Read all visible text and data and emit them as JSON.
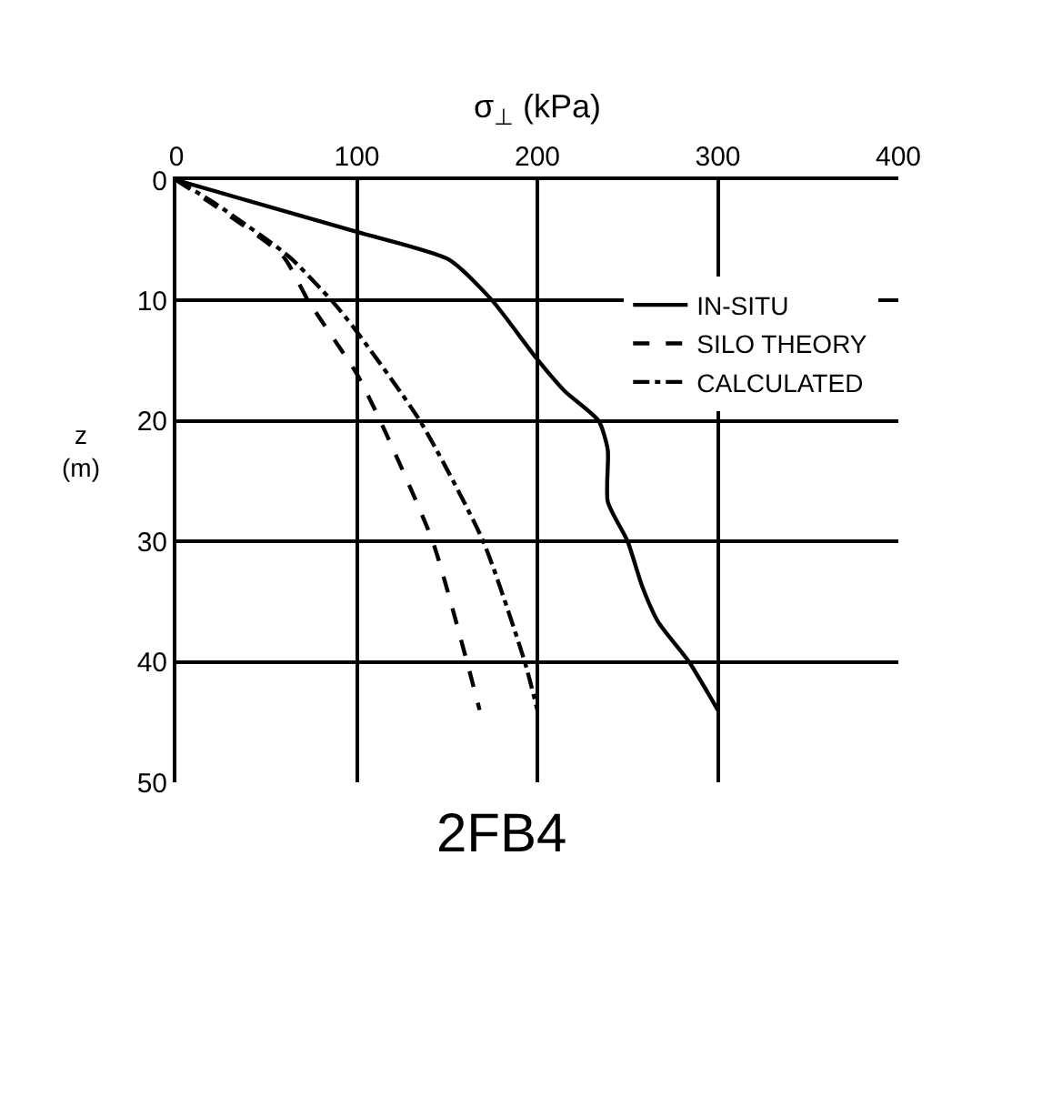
{
  "chart_data": {
    "type": "line",
    "xlabel": "σ$_{⊥}$ (kPa)",
    "ylabel": "z\n(m)",
    "xlim": [
      0,
      400
    ],
    "xticks": [
      0,
      100,
      200,
      300,
      400
    ],
    "ylim": [
      50,
      0
    ],
    "yticks": [
      0,
      10,
      20,
      30,
      40,
      50
    ],
    "grid": true,
    "legend": "right",
    "marker": "none",
    "series": [
      {
        "name": "IN-SITU",
        "color": "#000000",
        "line_style": "solid",
        "x": [
          0,
          100,
          151,
          175,
          199,
          215,
          234,
          239,
          239,
          250,
          258,
          267,
          284,
          300
        ],
        "values": [
          0,
          4.3,
          6.6,
          10,
          14.7,
          17.5,
          20,
          22.4,
          26.7,
          30,
          33.7,
          36.7,
          40,
          44
        ]
      },
      {
        "name": "SILO THEORY",
        "color": "#000000",
        "line_style": "dashed",
        "x": [
          0,
          20,
          59,
          73,
          100,
          113,
          142,
          161,
          168
        ],
        "values": [
          0,
          2,
          6.3,
          10,
          16.1,
          20,
          30,
          40,
          44
        ]
      },
      {
        "name": "CALCULATED",
        "color": "#000000",
        "line_style": "dashdot",
        "x": [
          0,
          22,
          62,
          86,
          98,
          135,
          170,
          193,
          200
        ],
        "values": [
          0,
          2,
          6.3,
          10,
          12.2,
          20,
          30,
          40,
          44
        ]
      }
    ],
    "annotations": [
      "2FB4"
    ]
  }
}
